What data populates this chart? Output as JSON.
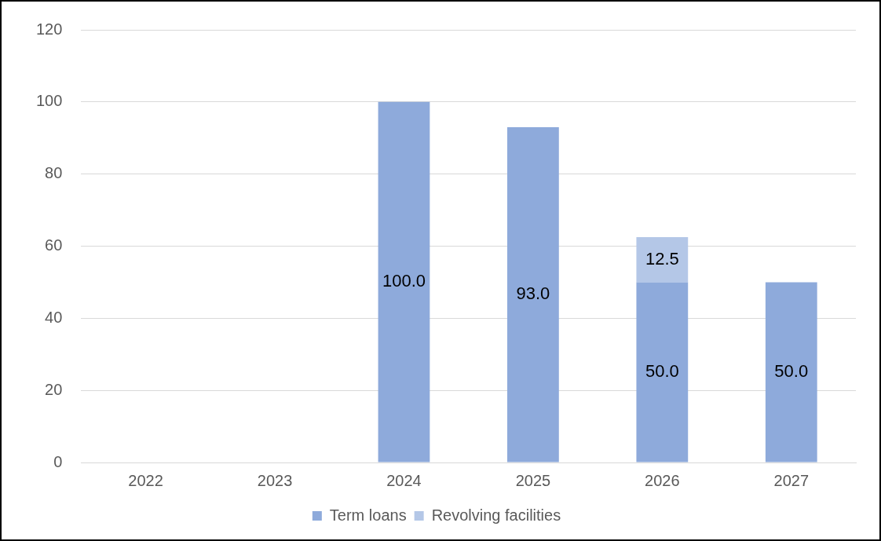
{
  "chart_data": {
    "type": "bar",
    "stacked": true,
    "categories": [
      "2022",
      "2023",
      "2024",
      "2025",
      "2026",
      "2027"
    ],
    "series": [
      {
        "name": "Term loans",
        "color": "#8eaadb",
        "values": [
          null,
          null,
          100,
          93,
          50,
          50
        ],
        "value_labels": [
          null,
          null,
          "100.0",
          "93.0",
          "50.0",
          "50.0"
        ]
      },
      {
        "name": "Revolving facilities",
        "color": "#b4c7e7",
        "values": [
          null,
          null,
          null,
          null,
          12.5,
          null
        ],
        "value_labels": [
          null,
          null,
          null,
          null,
          "12.5",
          null
        ]
      }
    ],
    "ylim": [
      0,
      120
    ],
    "yticks": [
      0,
      20,
      40,
      60,
      80,
      100,
      120
    ],
    "grid": "y",
    "legend": "bottom"
  }
}
